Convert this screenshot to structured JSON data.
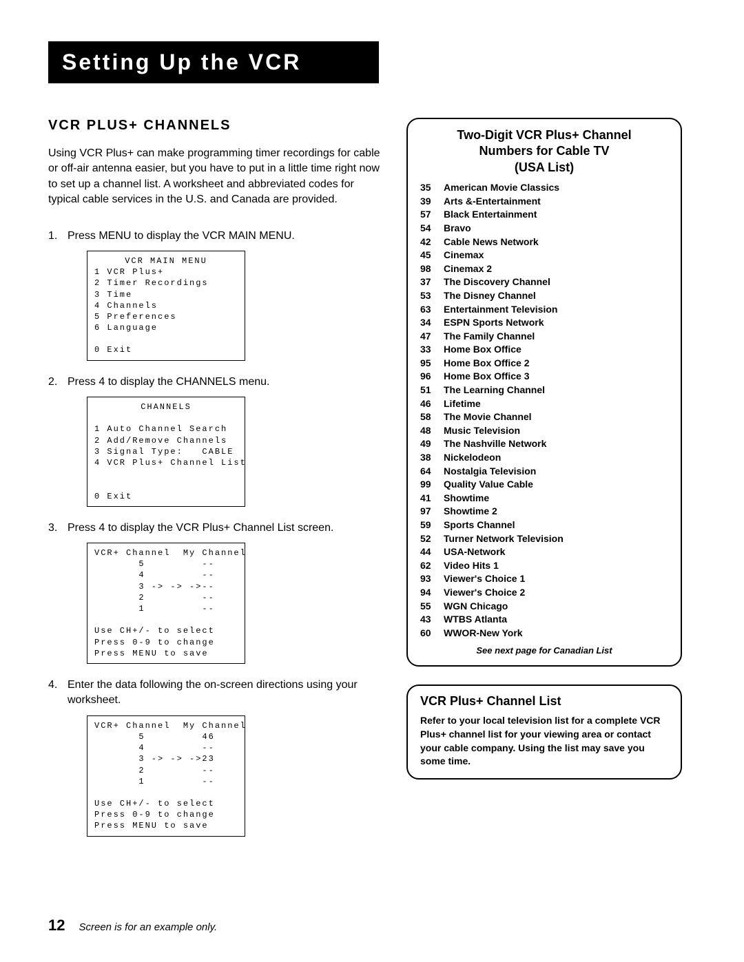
{
  "title_bar": "Setting Up the VCR",
  "section_heading": "VCR PLUS+ CHANNELS",
  "intro": "Using VCR Plus+ can make programming timer recordings for cable or off-air antenna easier, but you have to put in a little time right now to set up a channel list. A worksheet and abbreviated codes for typical cable services in the U.S. and Canada are provided.",
  "steps": {
    "s1": "Press MENU to display the VCR MAIN MENU.",
    "s2": "Press 4 to display the CHANNELS menu.",
    "s3": "Press 4 to display the VCR Plus+ Channel List screen.",
    "s4": "Enter the data following the on-screen directions using your worksheet."
  },
  "screen1": {
    "title": "VCR MAIN MENU",
    "body": "1 VCR Plus+\n2 Timer Recordings\n3 Time\n4 Channels\n5 Preferences\n6 Language\n\n0 Exit"
  },
  "screen2": {
    "title": "CHANNELS",
    "body": "\n1 Auto Channel Search\n2 Add/Remove Channels\n3 Signal Type:   CABLE\n4 VCR Plus+ Channel List\n\n\n0 Exit"
  },
  "screen3": {
    "body": "VCR+ Channel  My Channel\n       5         --\n       4         --\n       3 -> -> ->--\n       2         --\n       1         --\n\nUse CH+/- to select\nPress 0-9 to change\nPress MENU to save"
  },
  "screen4": {
    "body": "VCR+ Channel  My Channel\n       5         46\n       4         --\n       3 -> -> ->23\n       2         --\n       1         --\n\nUse CH+/- to select\nPress 0-9 to change\nPress MENU to save"
  },
  "usa_box": {
    "title_l1": "Two-Digit VCR Plus+ Channel",
    "title_l2": "Numbers for Cable TV",
    "title_l3": "(USA List)",
    "channels": [
      {
        "n": "35",
        "name": "American Movie Classics"
      },
      {
        "n": "39",
        "name": "Arts &-Entertainment"
      },
      {
        "n": "57",
        "name": "Black Entertainment"
      },
      {
        "n": "54",
        "name": "Bravo"
      },
      {
        "n": "42",
        "name": "Cable News Network"
      },
      {
        "n": "45",
        "name": "Cinemax"
      },
      {
        "n": "98",
        "name": "Cinemax 2"
      },
      {
        "n": "37",
        "name": "The Discovery Channel"
      },
      {
        "n": "53",
        "name": "The Disney Channel"
      },
      {
        "n": "63",
        "name": "Entertainment Television"
      },
      {
        "n": "34",
        "name": "ESPN Sports Network"
      },
      {
        "n": "47",
        "name": "The Family Channel"
      },
      {
        "n": "33",
        "name": "Home Box Office"
      },
      {
        "n": "95",
        "name": "Home Box Office 2"
      },
      {
        "n": "96",
        "name": "Home Box Office 3"
      },
      {
        "n": "51",
        "name": "The Learning Channel"
      },
      {
        "n": "46",
        "name": "Lifetime"
      },
      {
        "n": "58",
        "name": "The Movie Channel"
      },
      {
        "n": "48",
        "name": "Music Television"
      },
      {
        "n": "49",
        "name": "The Nashville Network"
      },
      {
        "n": "38",
        "name": "Nickelodeon"
      },
      {
        "n": "64",
        "name": "Nostalgia Television"
      },
      {
        "n": "99",
        "name": "Quality Value Cable"
      },
      {
        "n": "41",
        "name": "Showtime"
      },
      {
        "n": "97",
        "name": "Showtime 2"
      },
      {
        "n": "59",
        "name": "Sports Channel"
      },
      {
        "n": "52",
        "name": "Turner Network Television"
      },
      {
        "n": "44",
        "name": "USA-Network"
      },
      {
        "n": "62",
        "name": "Video Hits 1"
      },
      {
        "n": "93",
        "name": "Viewer's Choice 1"
      },
      {
        "n": "94",
        "name": "Viewer's Choice 2"
      },
      {
        "n": "55",
        "name": "WGN Chicago"
      },
      {
        "n": "43",
        "name": "WTBS Atlanta"
      },
      {
        "n": "60",
        "name": "WWOR-New York"
      }
    ],
    "see_next": "See next page for Canadian List"
  },
  "list_box": {
    "title": "VCR Plus+ Channel List",
    "body": "Refer to your local television list for a complete VCR Plus+ channel list for your viewing area or contact your cable company. Using the list may save you some time."
  },
  "page_number": "12",
  "footnote": "Screen is for an example only."
}
